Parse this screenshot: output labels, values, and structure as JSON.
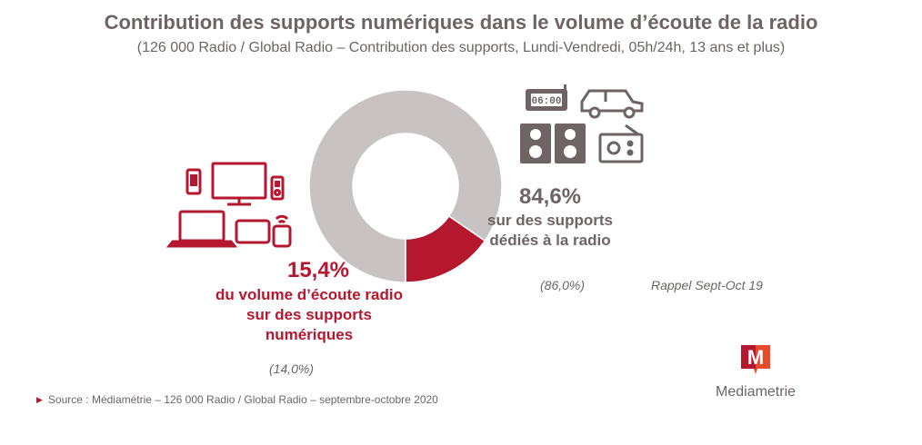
{
  "title": "Contribution des supports numériques dans le volume d’écoute de la radio",
  "subtitle": "(126 000 Radio / Global Radio – Contribution des supports, Lundi-Vendredi, 05h/24h, 13 ans et plus)",
  "colors": {
    "digital": "#b5172f",
    "radio": "#c8c2c2",
    "icon_digital": "#b5172f",
    "icon_radio": "#6e6464",
    "text_grey": "#6e6464"
  },
  "chart_data": {
    "type": "pie",
    "title": "Contribution des supports numériques dans le volume d’écoute de la radio",
    "subtitle": "(126 000 Radio / Global Radio – Contribution des supports, Lundi-Vendredi, 05h/24h, 13 ans et plus)",
    "categories": [
      "du volume d’écoute radio sur des supports numériques",
      "sur des supports dédiés à la radio"
    ],
    "values": [
      15.4,
      84.6
    ],
    "value_labels": [
      "15,4%",
      "84,6%"
    ],
    "previous_values": [
      14.0,
      86.0
    ],
    "previous_labels": [
      "(14,0%)",
      "(86,0%)"
    ],
    "previous_period_label": "Rappel Sept-Oct 19"
  },
  "digital": {
    "pct": "15,4%",
    "desc_lines": [
      "du volume d’écoute radio",
      "sur des supports",
      "numériques"
    ],
    "previous": "(14,0%)",
    "icons": [
      "smartphone-icon",
      "monitor-icon",
      "music-player-icon",
      "laptop-icon",
      "tablet-icon",
      "smart-speaker-icon"
    ]
  },
  "radio": {
    "pct": "84,6%",
    "desc_lines": [
      "sur des supports",
      "dédiés à la radio"
    ],
    "previous": "(86,0%)",
    "icons": [
      "clock-radio-icon",
      "car-icon",
      "stereo-speakers-icon",
      "radio-icon"
    ],
    "clock_text": "06:00"
  },
  "rappel": "Rappel Sept-Oct 19",
  "source": "Source : Médiamétrie – 126 000 Radio / Global Radio – septembre-octobre 2020",
  "logo": {
    "letter": "M",
    "name": "Mediametrie"
  }
}
